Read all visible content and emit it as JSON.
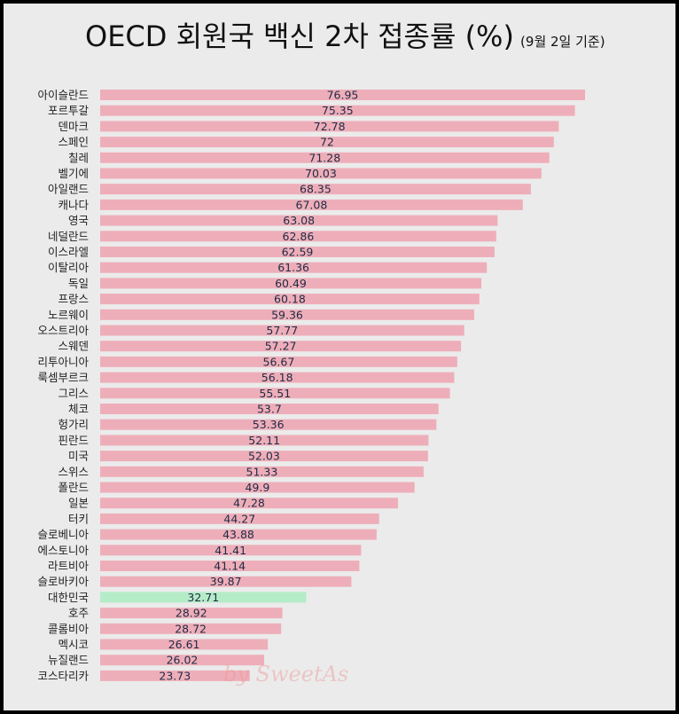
{
  "title": "OECD 회원국 백신 2차 접종률 (%)",
  "subtitle": "(9월 2일 기준)",
  "watermark": "by SweetAs",
  "colors": {
    "bar": "#eeaeb9",
    "highlight": "#b4ecc8",
    "label": "#222222",
    "value": "#1f2a44",
    "background": "#ebebeb"
  },
  "chart_data": {
    "type": "bar",
    "orientation": "horizontal",
    "title": "OECD 회원국 백신 2차 접종률 (%)",
    "xlabel": "",
    "ylabel": "",
    "xlim": [
      0,
      80
    ],
    "grid": false,
    "highlight_category": "대한민국",
    "categories": [
      "아이슬란드",
      "포르투갈",
      "덴마크",
      "스페인",
      "칠레",
      "벨기에",
      "아일랜드",
      "캐나다",
      "영국",
      "네덜란드",
      "이스라엘",
      "이탈리아",
      "독일",
      "프랑스",
      "노르웨이",
      "오스트리아",
      "스웨덴",
      "리투아니아",
      "룩셈부르크",
      "그리스",
      "체코",
      "헝가리",
      "핀란드",
      "미국",
      "스위스",
      "폴란드",
      "일본",
      "터키",
      "슬로베니아",
      "에스토니아",
      "라트비아",
      "슬로바키아",
      "대한민국",
      "호주",
      "콜롬비아",
      "멕시코",
      "뉴질랜드",
      "코스타리카"
    ],
    "values": [
      76.95,
      75.35,
      72.78,
      72,
      71.28,
      70.03,
      68.35,
      67.08,
      63.08,
      62.86,
      62.59,
      61.36,
      60.49,
      60.18,
      59.36,
      57.77,
      57.27,
      56.67,
      56.18,
      55.51,
      53.7,
      53.36,
      52.11,
      52.03,
      51.33,
      49.9,
      47.28,
      44.27,
      43.88,
      41.41,
      41.14,
      39.87,
      32.71,
      28.92,
      28.72,
      26.61,
      26.02,
      23.73
    ]
  }
}
